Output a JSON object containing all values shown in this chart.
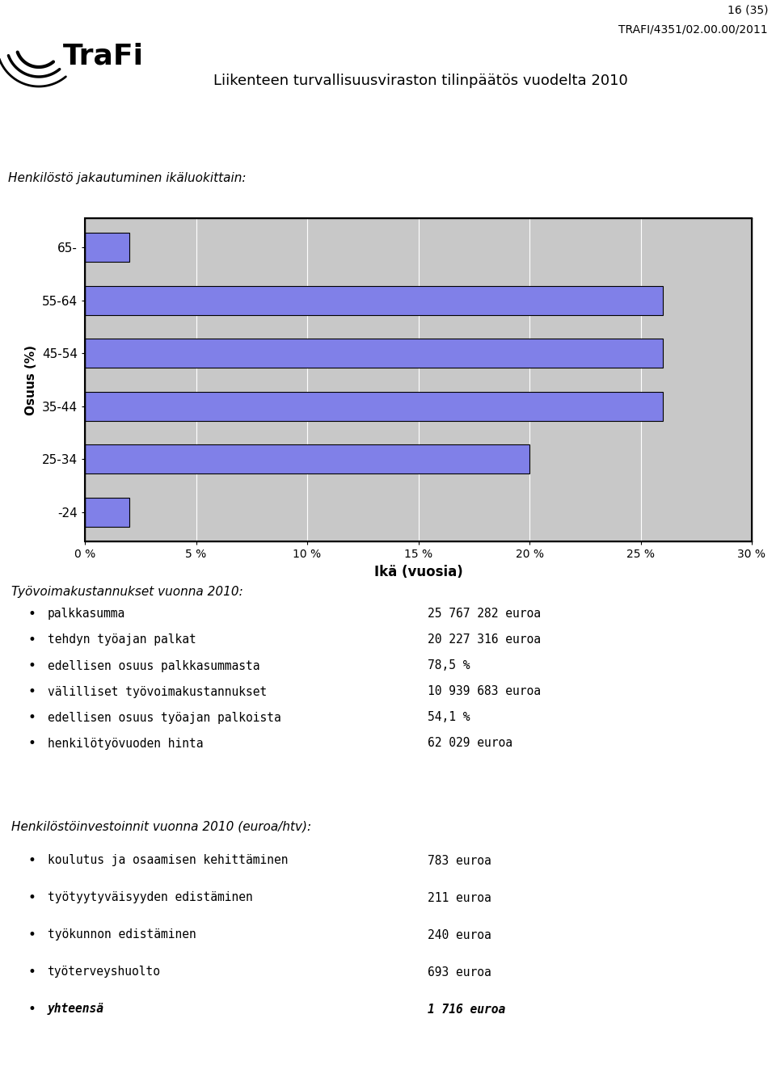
{
  "page_num": "16 (35)",
  "doc_ref": "TRAFI/4351/02.00.00/2011",
  "main_title": "Liikenteen turvallisuusviraston tilinpäätös vuodelta 2010",
  "chart_title": "Henkilöstö jakautuminen ikäluokittain:",
  "categories": [
    "65-",
    "55-64",
    "45-54",
    "35-44",
    "25-34",
    "-24"
  ],
  "values": [
    2.0,
    26.0,
    26.0,
    26.0,
    20.0,
    2.0
  ],
  "bar_color": "#8080e8",
  "bar_edge_color": "#000000",
  "plot_bg_color": "#c8c8c8",
  "xlabel": "Ikä (vuosia)",
  "ylabel": "Osuus (%)",
  "xlim": [
    0,
    30
  ],
  "xticks": [
    0,
    5,
    10,
    15,
    20,
    25,
    30
  ],
  "xtick_labels": [
    "0 %",
    "5 %",
    "10 %",
    "15 %",
    "20 %",
    "25 %",
    "30 %"
  ],
  "section1_title": "Työvoimakustannukset vuonna 2010:",
  "section1_items": [
    [
      "palkkasumma",
      "25 767 282 euroa"
    ],
    [
      "tehdyn työajan palkat",
      "20 227 316 euroa"
    ],
    [
      "edellisen osuus palkkasummasta",
      "78,5 %"
    ],
    [
      "välilliset työvoimakustannukset",
      "10 939 683 euroa"
    ],
    [
      "edellisen osuus työajan palkoista",
      "54,1 %"
    ],
    [
      "henkilötyövuoden hinta",
      "62 029 euroa"
    ]
  ],
  "section2_title": "Henkilöstöinvestoinnit vuonna 2010 (euroa/htv):",
  "section2_items": [
    [
      "koulutus ja osaamisen kehittäminen",
      "783 euroa"
    ],
    [
      "työtyytyväisyyden edistäminen",
      "211 euroa"
    ],
    [
      "työkunnon edistäminen",
      "240 euroa"
    ],
    [
      "työterveyshuolto",
      "693 euroa"
    ],
    [
      "yhteensä",
      "1 716 euroa"
    ]
  ]
}
